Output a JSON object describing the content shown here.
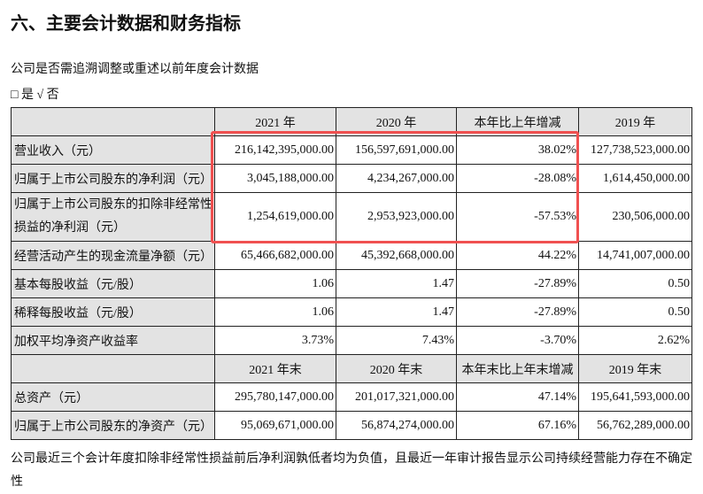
{
  "title": "六、主要会计数据和财务指标",
  "question": "公司是否需追溯调整或重述以前年度会计数据",
  "answer": "□ 是 √ 否",
  "table": {
    "header1": [
      "",
      "2021 年",
      "2020 年",
      "本年比上年增减",
      "2019 年"
    ],
    "rows1": [
      [
        "营业收入（元）",
        "216,142,395,000.00",
        "156,597,691,000.00",
        "38.02%",
        "127,738,523,000.00"
      ],
      [
        "归属于上市公司股东的净利润（元）",
        "3,045,188,000.00",
        "4,234,267,000.00",
        "-28.08%",
        "1,614,450,000.00"
      ],
      [
        "归属于上市公司股东的扣除非经常性损益的净利润（元）",
        "1,254,619,000.00",
        "2,953,923,000.00",
        "-57.53%",
        "230,506,000.00"
      ],
      [
        "经营活动产生的现金流量净额（元）",
        "65,466,682,000.00",
        "45,392,668,000.00",
        "44.22%",
        "14,741,007,000.00"
      ],
      [
        "基本每股收益（元/股）",
        "1.06",
        "1.47",
        "-27.89%",
        "0.50"
      ],
      [
        "稀释每股收益（元/股）",
        "1.06",
        "1.47",
        "-27.89%",
        "0.50"
      ],
      [
        "加权平均净资产收益率",
        "3.73%",
        "7.43%",
        "-3.70%",
        "2.62%"
      ]
    ],
    "header2": [
      "",
      "2021 年末",
      "2020 年末",
      "本年末比上年末增减",
      "2019 年末"
    ],
    "rows2": [
      [
        "总资产（元）",
        "295,780,147,000.00",
        "201,017,321,000.00",
        "47.14%",
        "195,641,593,000.00"
      ],
      [
        "归属于上市公司股东的净资产（元）",
        "95,069,671,000.00",
        "56,874,274,000.00",
        "67.16%",
        "56,762,289,000.00"
      ]
    ]
  },
  "highlight_color": "#f05050",
  "footer": "公司最近三个会计年度扣除非经常性损益前后净利润孰低者均为负值，且最近一年审计报告显示公司持续经营能力存在不确定性"
}
